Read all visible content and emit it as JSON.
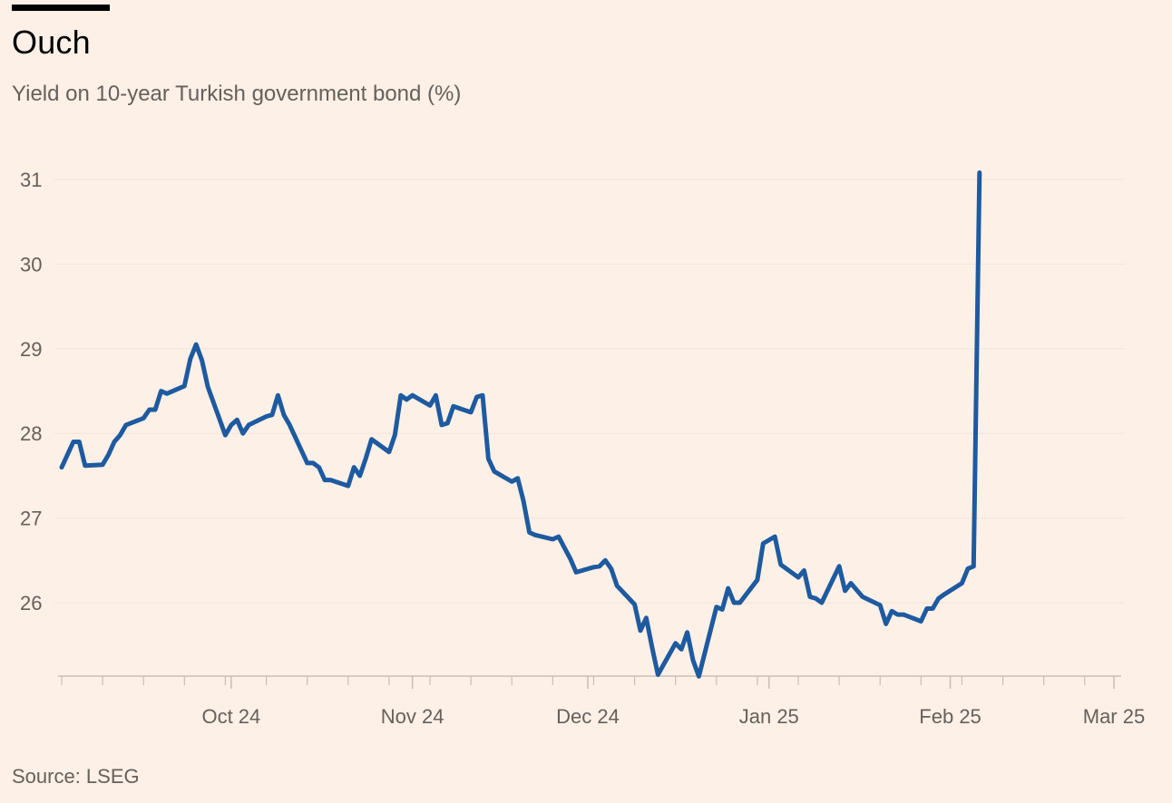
{
  "header": {
    "title": "Ouch",
    "subtitle": "Yield on 10-year Turkish government bond (%)"
  },
  "footer": {
    "source": "Source: LSEG"
  },
  "colors": {
    "background": "#fdf0e6",
    "line": "#1e5aa0",
    "grid": "#f2e4d8",
    "axis": "#c9bfb6",
    "text": "#66605c"
  },
  "chart_data": {
    "type": "line",
    "title": "Ouch",
    "subtitle": "Yield on 10-year Turkish government bond (%)",
    "xlabel": "",
    "ylabel": "",
    "ylim": [
      25.1,
      31.2
    ],
    "yticks": [
      26,
      27,
      28,
      29,
      30,
      31
    ],
    "xticks": [
      {
        "label": "Oct 24",
        "date": "2024-10-01"
      },
      {
        "label": "Nov 24",
        "date": "2024-11-01"
      },
      {
        "label": "Dec 24",
        "date": "2024-12-01"
      },
      {
        "label": "Jan 25",
        "date": "2025-01-01"
      },
      {
        "label": "Feb 25",
        "date": "2025-02-01"
      },
      {
        "label": "Mar 25",
        "date": "2025-03-01"
      }
    ],
    "xlim": [
      "2024-09-02",
      "2025-03-01"
    ],
    "grid": true,
    "series": [
      {
        "color": "#1e5aa0",
        "points": [
          [
            "2024-09-02",
            27.6
          ],
          [
            "2024-09-04",
            27.9
          ],
          [
            "2024-09-05",
            27.9
          ],
          [
            "2024-09-06",
            27.62
          ],
          [
            "2024-09-09",
            27.63
          ],
          [
            "2024-09-10",
            27.75
          ],
          [
            "2024-09-11",
            27.9
          ],
          [
            "2024-09-12",
            27.98
          ],
          [
            "2024-09-13",
            28.1
          ],
          [
            "2024-09-16",
            28.18
          ],
          [
            "2024-09-17",
            28.28
          ],
          [
            "2024-09-18",
            28.28
          ],
          [
            "2024-09-19",
            28.5
          ],
          [
            "2024-09-20",
            28.47
          ],
          [
            "2024-09-23",
            28.56
          ],
          [
            "2024-09-24",
            28.88
          ],
          [
            "2024-09-25",
            29.05
          ],
          [
            "2024-09-26",
            28.86
          ],
          [
            "2024-09-27",
            28.55
          ],
          [
            "2024-09-30",
            27.98
          ],
          [
            "2024-10-01",
            28.1
          ],
          [
            "2024-10-02",
            28.16
          ],
          [
            "2024-10-03",
            28.0
          ],
          [
            "2024-10-04",
            28.1
          ],
          [
            "2024-10-07",
            28.2
          ],
          [
            "2024-10-08",
            28.22
          ],
          [
            "2024-10-09",
            28.45
          ],
          [
            "2024-10-10",
            28.22
          ],
          [
            "2024-10-11",
            28.1
          ],
          [
            "2024-10-14",
            27.65
          ],
          [
            "2024-10-15",
            27.65
          ],
          [
            "2024-10-16",
            27.6
          ],
          [
            "2024-10-17",
            27.45
          ],
          [
            "2024-10-18",
            27.45
          ],
          [
            "2024-10-21",
            27.38
          ],
          [
            "2024-10-22",
            27.6
          ],
          [
            "2024-10-23",
            27.5
          ],
          [
            "2024-10-24",
            27.7
          ],
          [
            "2024-10-25",
            27.93
          ],
          [
            "2024-10-28",
            27.78
          ],
          [
            "2024-10-29",
            27.98
          ],
          [
            "2024-10-30",
            28.45
          ],
          [
            "2024-10-31",
            28.4
          ],
          [
            "2024-11-01",
            28.45
          ],
          [
            "2024-11-04",
            28.33
          ],
          [
            "2024-11-05",
            28.45
          ],
          [
            "2024-11-06",
            28.1
          ],
          [
            "2024-11-07",
            28.12
          ],
          [
            "2024-11-08",
            28.32
          ],
          [
            "2024-11-11",
            28.25
          ],
          [
            "2024-11-12",
            28.43
          ],
          [
            "2024-11-13",
            28.45
          ],
          [
            "2024-11-14",
            27.7
          ],
          [
            "2024-11-15",
            27.55
          ],
          [
            "2024-11-18",
            27.43
          ],
          [
            "2024-11-19",
            27.47
          ],
          [
            "2024-11-20",
            27.2
          ],
          [
            "2024-11-21",
            26.83
          ],
          [
            "2024-11-22",
            26.8
          ],
          [
            "2024-11-25",
            26.75
          ],
          [
            "2024-11-26",
            26.78
          ],
          [
            "2024-11-27",
            26.65
          ],
          [
            "2024-11-28",
            26.52
          ],
          [
            "2024-11-29",
            26.36
          ],
          [
            "2024-12-02",
            26.42
          ],
          [
            "2024-12-03",
            26.43
          ],
          [
            "2024-12-04",
            26.5
          ],
          [
            "2024-12-05",
            26.4
          ],
          [
            "2024-12-06",
            26.2
          ],
          [
            "2024-12-09",
            25.98
          ],
          [
            "2024-12-10",
            25.67
          ],
          [
            "2024-12-11",
            25.82
          ],
          [
            "2024-12-12",
            25.47
          ],
          [
            "2024-12-13",
            25.15
          ],
          [
            "2024-12-16",
            25.52
          ],
          [
            "2024-12-17",
            25.45
          ],
          [
            "2024-12-18",
            25.65
          ],
          [
            "2024-12-19",
            25.32
          ],
          [
            "2024-12-20",
            25.13
          ],
          [
            "2024-12-23",
            25.95
          ],
          [
            "2024-12-24",
            25.92
          ],
          [
            "2024-12-25",
            26.17
          ],
          [
            "2024-12-26",
            26.0
          ],
          [
            "2024-12-27",
            26.0
          ],
          [
            "2024-12-30",
            26.27
          ],
          [
            "2024-12-31",
            26.7
          ],
          [
            "2025-01-02",
            26.78
          ],
          [
            "2025-01-03",
            26.45
          ],
          [
            "2025-01-06",
            26.3
          ],
          [
            "2025-01-07",
            26.38
          ],
          [
            "2025-01-08",
            26.07
          ],
          [
            "2025-01-09",
            26.05
          ],
          [
            "2025-01-10",
            26.0
          ],
          [
            "2025-01-13",
            26.43
          ],
          [
            "2025-01-14",
            26.14
          ],
          [
            "2025-01-15",
            26.23
          ],
          [
            "2025-01-16",
            26.15
          ],
          [
            "2025-01-17",
            26.07
          ],
          [
            "2025-01-20",
            25.97
          ],
          [
            "2025-01-21",
            25.75
          ],
          [
            "2025-01-22",
            25.9
          ],
          [
            "2025-01-23",
            25.86
          ],
          [
            "2025-01-24",
            25.86
          ],
          [
            "2025-01-27",
            25.78
          ],
          [
            "2025-01-28",
            25.93
          ],
          [
            "2025-01-29",
            25.93
          ],
          [
            "2025-01-30",
            26.05
          ],
          [
            "2025-01-31",
            26.1
          ],
          [
            "2025-02-03",
            26.23
          ],
          [
            "2025-02-04",
            26.4
          ],
          [
            "2025-02-05",
            26.43
          ],
          [
            "2025-02-06",
            31.08
          ]
        ]
      }
    ]
  }
}
